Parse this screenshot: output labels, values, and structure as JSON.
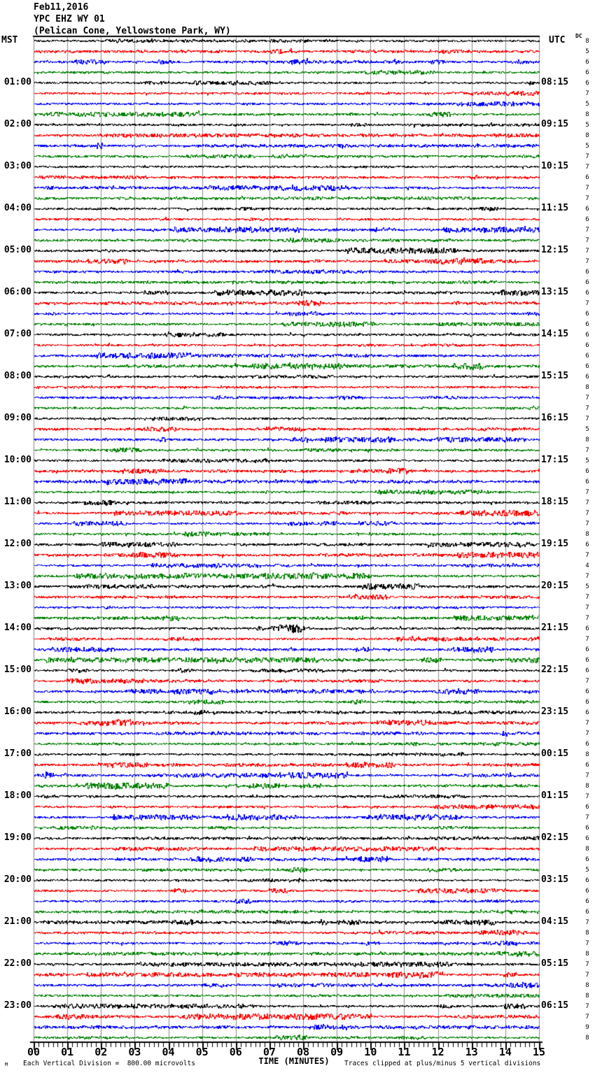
{
  "title": {
    "line1": "Feb11,2016",
    "line2": "YPC EHZ WY 01",
    "line3": "(Pelican Cone, Yellowstone Park, WY)"
  },
  "left_axis": {
    "label": "MST",
    "hours": [
      "01:00",
      "02:00",
      "03:00",
      "04:00",
      "05:00",
      "06:00",
      "07:00",
      "08:00",
      "09:00",
      "10:00",
      "11:00",
      "12:00",
      "13:00",
      "14:00",
      "15:00",
      "16:00",
      "17:00",
      "18:00",
      "19:00",
      "20:00",
      "21:00",
      "22:00",
      "23:00"
    ]
  },
  "right_axis": {
    "label": "UTC",
    "dc_label": "DC",
    "utc_times": [
      "08:15",
      "09:15",
      "10:15",
      "11:15",
      "12:15",
      "13:15",
      "14:15",
      "15:15",
      "16:15",
      "17:15",
      "18:15",
      "19:15",
      "20:15",
      "21:15",
      "22:15",
      "23:15",
      "00:15",
      "01:15",
      "02:15",
      "03:15",
      "04:15",
      "05:15",
      "06:15"
    ]
  },
  "x_axis": {
    "ticks": [
      "00",
      "01",
      "02",
      "03",
      "04",
      "05",
      "06",
      "07",
      "08",
      "09",
      "10",
      "11",
      "12",
      "13",
      "14",
      "15"
    ],
    "title": "TIME (MINUTES)"
  },
  "footer": {
    "left": "Each Vertical Division =  800.00 microvolts",
    "right": "Traces clipped at plus/minus 5 vertical divisions",
    "watermark": "M"
  },
  "colors": {
    "trace_cycle": [
      "#000000",
      "#ff0000",
      "#0000ff",
      "#007f00"
    ],
    "grid": "#8a8a8a",
    "axis": "#000000"
  },
  "chart_data": {
    "type": "line",
    "subtype": "helicorder-seismogram",
    "date": "Feb11,2016",
    "station": "YPC EHZ WY 01",
    "location": "Pelican Cone, Yellowstone Park, WY",
    "timezone_left": "MST",
    "timezone_right": "UTC",
    "minutes_per_line": 15,
    "lines_per_hour": 4,
    "num_traces": 96,
    "first_trace_start_mst": "00:00",
    "first_hour_line_utc": "08:15",
    "x_range_minutes": [
      0,
      15
    ],
    "x_axis_title": "TIME (MINUTES)",
    "vertical_division_microvolts": 800.0,
    "clip_divisions": 5,
    "trace_color_cycle": [
      "#000000",
      "#ff0000",
      "#0000ff",
      "#007f00"
    ],
    "dc_values": [
      8,
      5,
      6,
      6,
      6,
      7,
      5,
      8,
      5,
      8,
      5,
      7,
      7,
      6,
      7,
      7,
      6,
      6,
      7,
      7,
      7,
      7,
      6,
      6,
      6,
      7,
      6,
      6,
      6,
      6,
      6,
      6,
      6,
      8,
      7,
      7,
      7,
      5,
      8,
      7,
      5,
      6,
      6,
      7,
      7,
      7,
      7,
      8,
      6,
      7,
      4,
      7,
      5,
      7,
      7,
      7,
      6,
      7,
      6,
      6,
      6,
      7,
      6,
      6,
      6,
      7,
      7,
      6,
      8,
      6,
      7,
      8,
      7,
      6,
      7,
      6,
      6,
      8,
      6,
      5,
      6,
      6,
      6,
      6,
      7,
      8,
      7,
      8,
      7,
      7,
      8,
      8,
      7,
      7,
      9,
      8
    ],
    "content_note": "96 fifteen-minute traces of continuous background seismic noise; no large events, minor noise bursts throughout"
  }
}
